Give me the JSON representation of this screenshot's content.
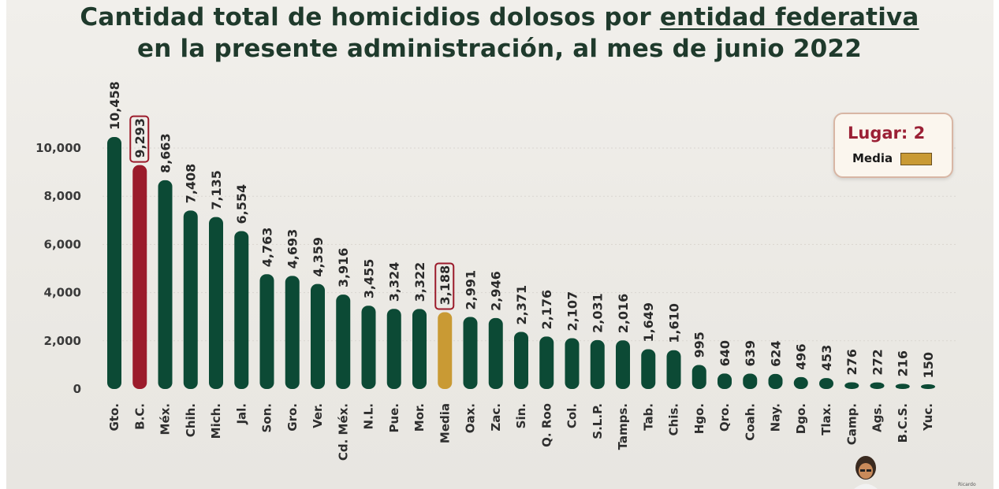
{
  "header": {
    "title_line1_prefix": "Cantidad total de homicidios dolosos por ",
    "title_line1_underlined": "entidad federativa",
    "title_line2": "en la presente administración, al mes de junio 2022"
  },
  "legend": {
    "lugar": "Lugar: 2",
    "media": "Media"
  },
  "footer": {
    "signature": "Ricardo"
  },
  "colors": {
    "bar": "#0c4a35",
    "highlight": "#9b1b2b",
    "media": "#c99a34",
    "label": "#2a2a2a",
    "grid": "#d9d6d0"
  },
  "chart_data": {
    "type": "bar",
    "title": "Cantidad total de homicidios dolosos por entidad federativa en la presente administración, al mes de junio 2022",
    "xlabel": "",
    "ylabel": "",
    "ylim": [
      0,
      10500
    ],
    "yticks": [
      0,
      2000,
      4000,
      6000,
      8000,
      10000
    ],
    "ytick_labels": [
      "0",
      "2,000",
      "4,000",
      "6,000",
      "8,000",
      "10,000"
    ],
    "grid": true,
    "categories": [
      "Gto.",
      "B.C.",
      "Méx.",
      "Chih.",
      "Mich.",
      "Jal.",
      "Son.",
      "Gro.",
      "Ver.",
      "Cd. Méx.",
      "N.L.",
      "Pue.",
      "Mor.",
      "Media",
      "Oax.",
      "Zac.",
      "Sin.",
      "Q. Roo",
      "Col.",
      "S.L.P.",
      "Tamps.",
      "Tab.",
      "Chis.",
      "Hgo.",
      "Qro.",
      "Coah.",
      "Nay.",
      "Dgo.",
      "Tlax.",
      "Camp.",
      "Ags.",
      "B.C.S.",
      "Yuc."
    ],
    "values": [
      10458,
      9293,
      8663,
      7408,
      7135,
      6554,
      4763,
      4693,
      4359,
      3916,
      3455,
      3324,
      3322,
      3188,
      2991,
      2946,
      2371,
      2176,
      2107,
      2031,
      2016,
      1649,
      1610,
      995,
      640,
      639,
      624,
      496,
      453,
      276,
      272,
      216,
      150
    ],
    "value_labels": [
      "10,458",
      "9,293",
      "8,663",
      "7,408",
      "7,135",
      "6,554",
      "4,763",
      "4,693",
      "4,359",
      "3,916",
      "3,455",
      "3,324",
      "3,322",
      "3,188",
      "2,991",
      "2,946",
      "2,371",
      "2,176",
      "2,107",
      "2,031",
      "2,016",
      "1,649",
      "1,610",
      "995",
      "640",
      "639",
      "624",
      "496",
      "453",
      "276",
      "272",
      "216",
      "150"
    ],
    "highlighted_category": "B.C.",
    "mean_category": "Media",
    "boxed_labels": [
      "B.C.",
      "Media"
    ],
    "legend_position": "top-right"
  }
}
